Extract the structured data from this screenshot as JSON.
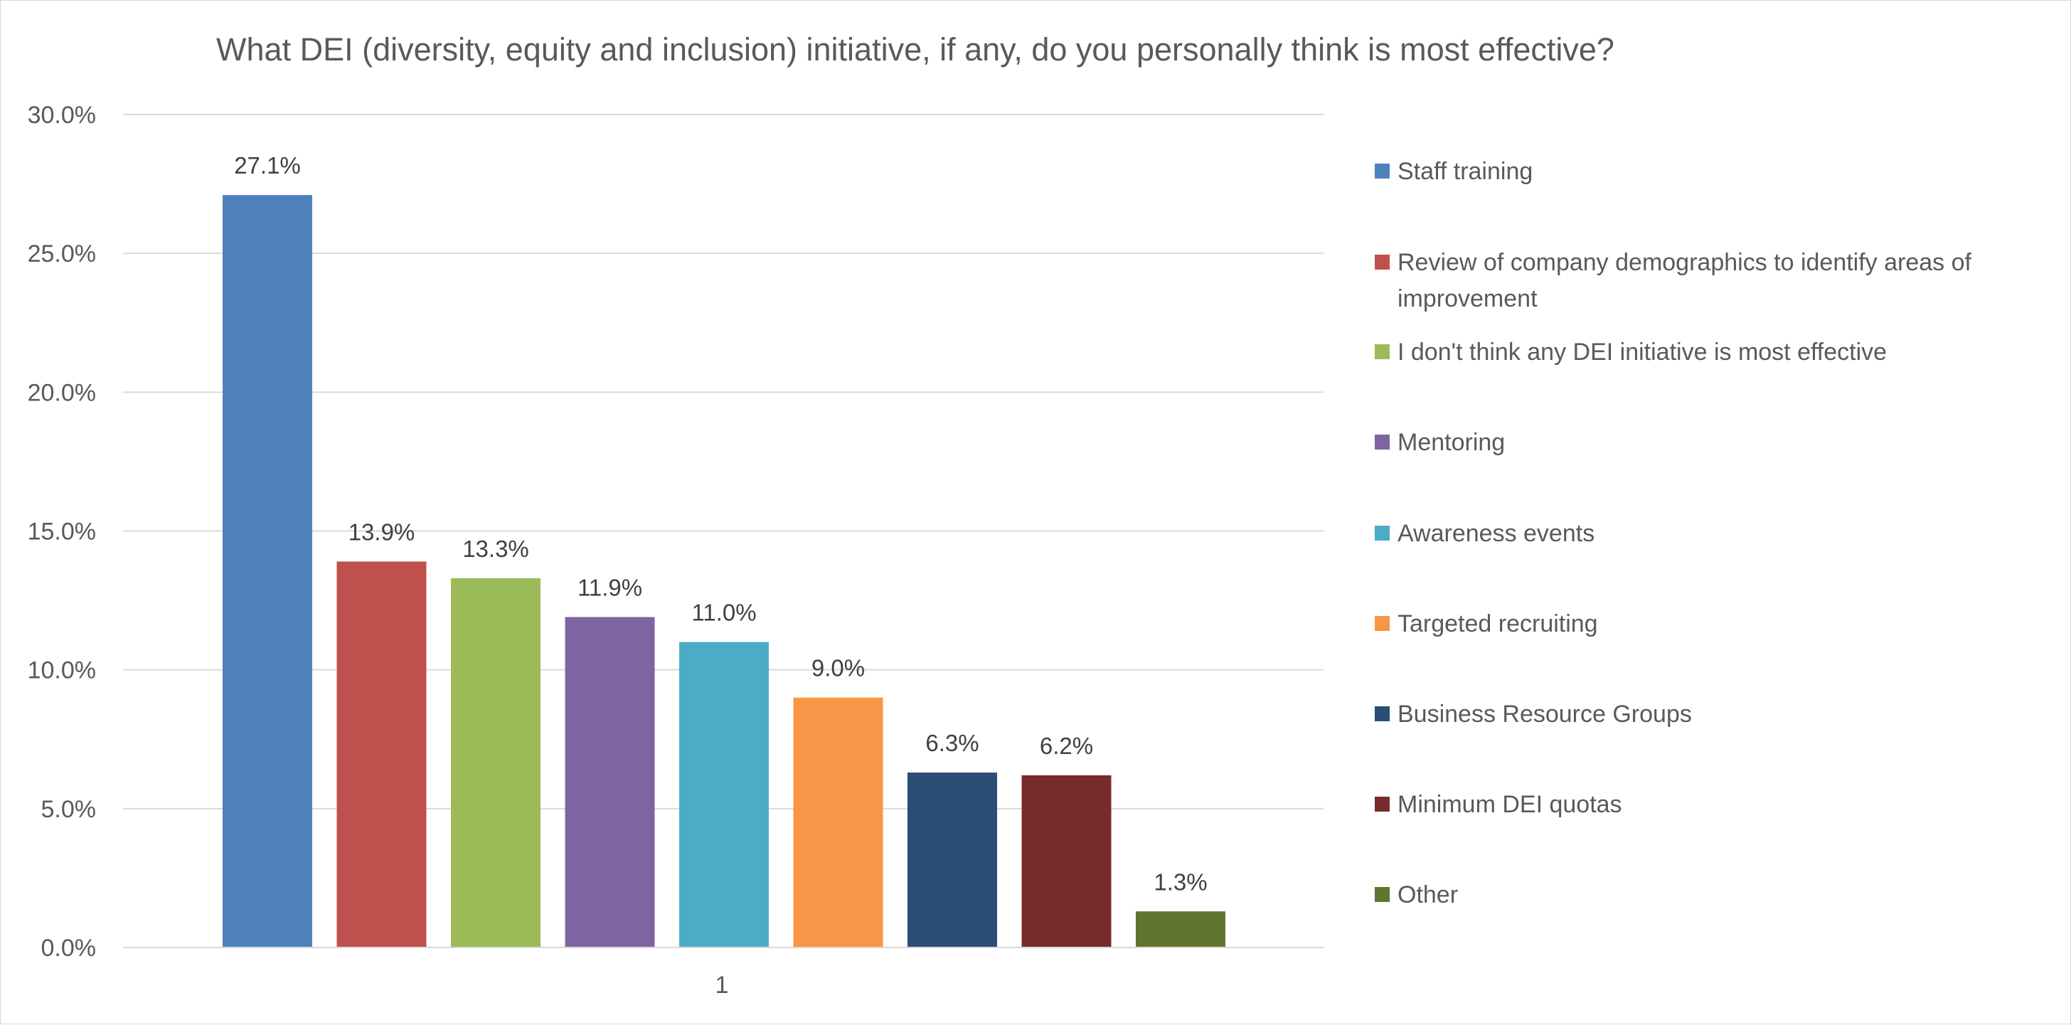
{
  "chart_data": {
    "type": "bar",
    "title": "What DEI (diversity, equity and inclusion) initiative, if any, do you personally think is most effective?",
    "xlabel": "",
    "ylabel": "",
    "categories": [
      "1"
    ],
    "ylim": [
      0,
      30
    ],
    "yticks": [
      "0.0%",
      "5.0%",
      "10.0%",
      "15.0%",
      "20.0%",
      "25.0%",
      "30.0%"
    ],
    "ytick_values": [
      0,
      5,
      10,
      15,
      20,
      25,
      30
    ],
    "grid": true,
    "legend_position": "right",
    "series": [
      {
        "name": "Staff training",
        "values": [
          27.1
        ],
        "label": "27.1%",
        "color": "#4f81bd"
      },
      {
        "name": "Review of company demographics to identify areas of improvement",
        "name_lines": [
          "Review of company demographics to identify areas of",
          "improvement"
        ],
        "values": [
          13.9
        ],
        "label": "13.9%",
        "color": "#c0504d"
      },
      {
        "name": "I don't think any DEI initiative is most effective",
        "values": [
          13.3
        ],
        "label": "13.3%",
        "color": "#9bbb59"
      },
      {
        "name": "Mentoring",
        "values": [
          11.9
        ],
        "label": "11.9%",
        "color": "#8064a2"
      },
      {
        "name": "Awareness events",
        "values": [
          11.0
        ],
        "label": "11.0%",
        "color": "#4bacc6"
      },
      {
        "name": "Targeted recruiting",
        "values": [
          9.0
        ],
        "label": "9.0%",
        "color": "#f79646"
      },
      {
        "name": "Business Resource Groups",
        "values": [
          6.3
        ],
        "label": "6.3%",
        "color": "#2c4d75"
      },
      {
        "name": "Minimum DEI quotas",
        "values": [
          6.2
        ],
        "label": "6.2%",
        "color": "#772c2a"
      },
      {
        "name": "Other",
        "values": [
          1.3
        ],
        "label": "1.3%",
        "color": "#5f7530"
      }
    ]
  }
}
